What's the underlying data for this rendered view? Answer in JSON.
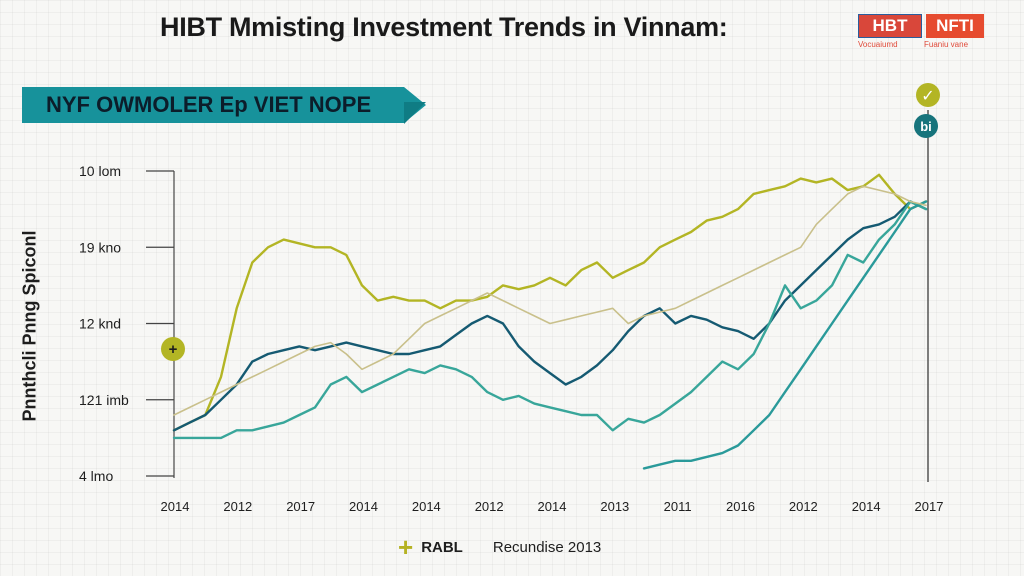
{
  "header": {
    "title": "HIBT Mmisting Investment Trends  in Vinnam:",
    "logo_left": "HBT",
    "logo_right": "NFTI",
    "logo_sub_left": "Vocuaiumd",
    "logo_sub_right": "Fuaniu vane"
  },
  "banner": {
    "label": "NYF OWMOLER Ep VIET NOPE"
  },
  "markers": {
    "left": "+",
    "top_right": "✓",
    "right": "bi"
  },
  "colors": {
    "lime": "#b3b524",
    "teal": "#1b8f95",
    "navy": "#155a72",
    "aqua": "#38a69a",
    "tan": "#c9c08b"
  },
  "chart_data": {
    "type": "line",
    "title": "HIBT Mmisting Investment Trends  in Vinnam:",
    "ylabel": "Pnnthcli Pnng Spiconl",
    "xlabel": "",
    "ytick_labels": [
      "10 lom",
      "19 kno",
      "12 knd",
      "121 imb",
      "4 lmo"
    ],
    "ytick_values": [
      5,
      4,
      3,
      2,
      1
    ],
    "ylim": [
      1,
      5
    ],
    "xtick_labels": [
      "2014",
      "2012",
      "2017",
      "2014",
      "2014",
      "2012",
      "2014",
      "2013",
      "2011",
      "2016",
      "2012",
      "2014",
      "2017"
    ],
    "x": [
      0,
      1,
      2,
      3,
      4,
      5,
      6,
      7,
      8,
      9,
      10,
      11,
      12,
      13,
      14,
      15,
      16,
      17,
      18,
      19,
      20,
      21,
      22,
      23,
      24,
      25,
      26,
      27,
      28,
      29,
      30,
      31,
      32,
      33,
      34,
      35,
      36,
      37,
      38,
      39,
      40,
      41,
      42,
      43,
      44,
      45,
      46,
      47,
      48
    ],
    "xlim": [
      0,
      48
    ],
    "legend": [
      "RABL",
      "Recundise 2013"
    ],
    "series": [
      {
        "name": "",
        "color": "#b3b524",
        "values": [
          1.6,
          1.7,
          1.8,
          2.3,
          3.2,
          3.8,
          4.0,
          4.1,
          4.05,
          4.0,
          4.0,
          3.9,
          3.5,
          3.3,
          3.35,
          3.3,
          3.3,
          3.2,
          3.3,
          3.3,
          3.35,
          3.5,
          3.45,
          3.5,
          3.6,
          3.5,
          3.7,
          3.8,
          3.6,
          3.7,
          3.8,
          4.0,
          4.1,
          4.2,
          4.35,
          4.4,
          4.5,
          4.7,
          4.75,
          4.8,
          4.9,
          4.85,
          4.9,
          4.75,
          4.8,
          4.95,
          4.7,
          4.5,
          4.6
        ]
      },
      {
        "name": "",
        "color": "#155a72",
        "values": [
          1.6,
          1.7,
          1.8,
          2.0,
          2.2,
          2.5,
          2.6,
          2.65,
          2.7,
          2.65,
          2.7,
          2.75,
          2.7,
          2.65,
          2.6,
          2.6,
          2.65,
          2.7,
          2.85,
          3.0,
          3.1,
          3.0,
          2.7,
          2.5,
          2.35,
          2.2,
          2.3,
          2.45,
          2.65,
          2.9,
          3.1,
          3.2,
          3.0,
          3.1,
          3.05,
          2.95,
          2.9,
          2.8,
          3.0,
          3.3,
          3.5,
          3.7,
          3.9,
          4.1,
          4.25,
          4.3,
          4.4,
          4.6,
          4.5
        ]
      },
      {
        "name": "",
        "color": "#38a69a",
        "values": [
          1.5,
          1.5,
          1.5,
          1.5,
          1.6,
          1.6,
          1.65,
          1.7,
          1.8,
          1.9,
          2.2,
          2.3,
          2.1,
          2.2,
          2.3,
          2.4,
          2.35,
          2.45,
          2.4,
          2.3,
          2.1,
          2.0,
          2.05,
          1.95,
          1.9,
          1.85,
          1.8,
          1.8,
          1.6,
          1.75,
          1.7,
          1.8,
          1.95,
          2.1,
          2.3,
          2.5,
          2.4,
          2.6,
          3.0,
          3.5,
          3.2,
          3.3,
          3.5,
          3.9,
          3.8,
          4.1,
          4.3,
          4.6,
          4.5
        ]
      },
      {
        "name": "",
        "color": "#2a9a9a",
        "values": [
          null,
          null,
          null,
          null,
          null,
          null,
          null,
          null,
          null,
          null,
          null,
          null,
          null,
          null,
          null,
          null,
          null,
          null,
          null,
          null,
          null,
          null,
          null,
          null,
          null,
          null,
          null,
          null,
          null,
          null,
          1.1,
          1.15,
          1.2,
          1.2,
          1.25,
          1.3,
          1.4,
          1.6,
          1.8,
          2.1,
          2.4,
          2.7,
          3.0,
          3.3,
          3.6,
          3.9,
          4.2,
          4.5,
          4.6
        ]
      },
      {
        "name": "",
        "color": "#c9c08b",
        "values": [
          1.8,
          1.9,
          2.0,
          2.1,
          2.2,
          2.3,
          2.4,
          2.5,
          2.6,
          2.7,
          2.75,
          2.6,
          2.4,
          2.5,
          2.6,
          2.8,
          3.0,
          3.1,
          3.2,
          3.3,
          3.4,
          3.3,
          3.2,
          3.1,
          3.0,
          3.05,
          3.1,
          3.15,
          3.2,
          3.0,
          3.1,
          3.15,
          3.2,
          3.3,
          3.4,
          3.5,
          3.6,
          3.7,
          3.8,
          3.9,
          4.0,
          4.3,
          4.5,
          4.7,
          4.8,
          4.75,
          4.7,
          4.6,
          4.55
        ]
      }
    ],
    "grid": false,
    "legend_position": "bottom"
  }
}
